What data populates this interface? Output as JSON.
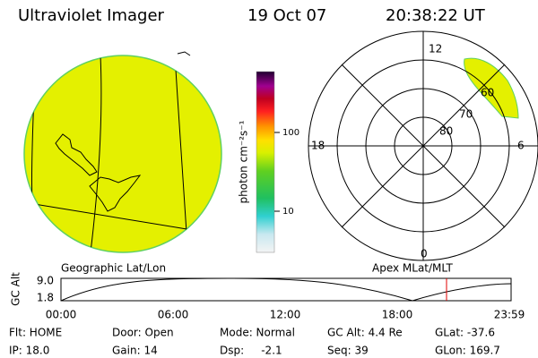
{
  "header": {
    "instrument": "Ultraviolet Imager",
    "date": "19 Oct 07",
    "time": "20:38:22 UT"
  },
  "colorbar": {
    "label": "photon cm⁻²s⁻¹",
    "ticks": [
      "100",
      "10"
    ]
  },
  "polar_plot": {
    "mlt_labels": [
      "12",
      "18",
      "6",
      "0"
    ],
    "lat_labels": [
      "60",
      "70",
      "80"
    ]
  },
  "altitude_plot": {
    "left_title": "Geographic Lat/Lon",
    "right_title": "Apex MLat/MLT",
    "axis_label": "GC Alt",
    "y_labels": [
      "9.0",
      "1.8"
    ],
    "time_labels": [
      "00:00",
      "06:00",
      "12:00",
      "18:00",
      "23:59"
    ]
  },
  "status": {
    "rows": [
      [
        "Flt: HOME",
        "Door: Open",
        "Mode: Normal",
        "GC Alt: 4.4 Re",
        "GLat: -37.6"
      ],
      [
        "IP: 18.0",
        "Gain: 14",
        "Dsp:     -2.1",
        "Seq: 39",
        "GLon: 169.7"
      ]
    ]
  }
}
